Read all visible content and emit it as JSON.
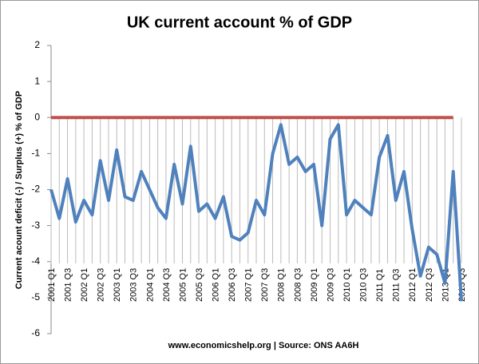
{
  "chart_data": {
    "type": "line",
    "title": "UK current account % of GDP",
    "y_label": "Current acount  deficit (-) / Surplus (+) % of GDP",
    "source": "www.economicshelp.org | Source: ONS AA6H",
    "categories": [
      "2001 Q1",
      null,
      "2001 Q3",
      null,
      "2002 Q1",
      null,
      "2002 Q3",
      null,
      "2003 Q1",
      null,
      "2003 Q3",
      null,
      "2004 Q1",
      null,
      "2004 Q3",
      null,
      "2005 Q1",
      null,
      "2005 Q3",
      null,
      "2006 Q1",
      null,
      "2006 Q3",
      null,
      "2007 Q1",
      null,
      "2007 Q3",
      null,
      "2008 Q1",
      null,
      "2008 Q3",
      null,
      "2009 Q1",
      null,
      "2009 Q3",
      null,
      "2010 Q1",
      null,
      "2010 Q3",
      null,
      "2011 Q1",
      null,
      "2011 Q3",
      null,
      "2012 Q1",
      null,
      "2012 Q3",
      null,
      "2013 Q1",
      null,
      "2013 Q3"
    ],
    "series": [
      {
        "color": "#4f81bd",
        "values": [
          -2.0,
          -2.8,
          -1.7,
          -2.9,
          -2.3,
          -2.7,
          -1.2,
          -2.3,
          -0.9,
          -2.2,
          -2.3,
          -1.5,
          -2.0,
          -2.5,
          -2.8,
          -1.3,
          -2.4,
          -0.8,
          -2.6,
          -2.4,
          -2.8,
          -2.2,
          -3.3,
          -3.4,
          -3.2,
          -2.3,
          -2.7,
          -1.0,
          -0.2,
          -1.3,
          -1.1,
          -1.5,
          -1.3,
          -3.0,
          -0.6,
          -0.2,
          -2.7,
          -2.3,
          -2.5,
          -2.7,
          -1.1,
          -0.5,
          -2.3,
          -1.5,
          -3.1,
          -4.4,
          -3.6,
          -3.8,
          -4.6,
          -1.5,
          -5.1
        ]
      },
      {
        "color": "#c0504d",
        "values": [
          0,
          0,
          0,
          0,
          0,
          0,
          0,
          0,
          0,
          0,
          0,
          0,
          0,
          0,
          0,
          0,
          0,
          0,
          0,
          0,
          0,
          0,
          0,
          0,
          0,
          0,
          0,
          0,
          0,
          0,
          0,
          0,
          0,
          0,
          0,
          0,
          0,
          0,
          0,
          0,
          0,
          0,
          0,
          0,
          0,
          0,
          0,
          0,
          0,
          0,
          null
        ]
      }
    ],
    "ylim": [
      -6,
      2
    ],
    "yticks": [
      -6,
      -5,
      -4,
      -3,
      -2,
      -1,
      0,
      1,
      2
    ]
  }
}
